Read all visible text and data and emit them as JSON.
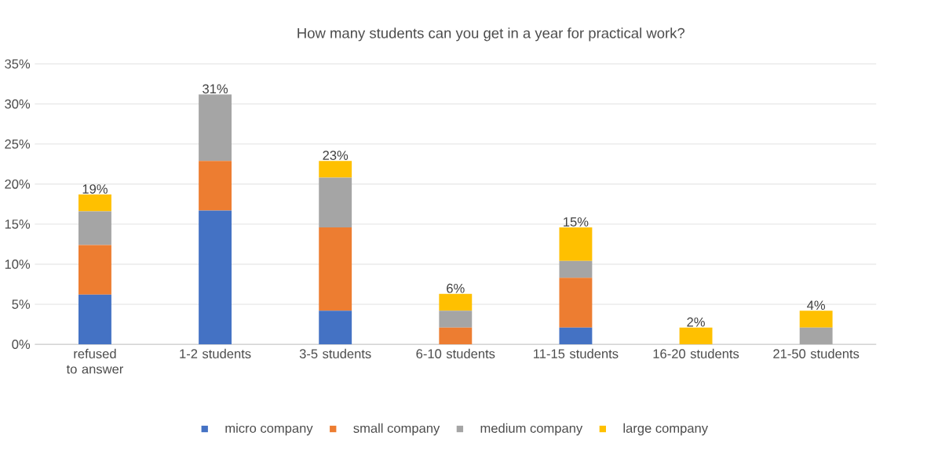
{
  "chart_data": {
    "type": "bar",
    "stacked": true,
    "title": "How many students can you get in a year for practical work?",
    "categories": [
      "refused to answer",
      "1-2 students",
      "3-5 students",
      "6-10 students",
      "11-15 students",
      "16-20 students",
      "21-50 students"
    ],
    "series": [
      {
        "name": "micro company",
        "color": "#4472c4",
        "values": [
          6.2,
          16.7,
          4.2,
          0,
          2.1,
          0,
          0
        ]
      },
      {
        "name": "small company",
        "color": "#ed7d31",
        "values": [
          6.2,
          6.2,
          10.4,
          2.1,
          6.2,
          0,
          0
        ]
      },
      {
        "name": "medium company",
        "color": "#a5a5a5",
        "values": [
          4.2,
          8.3,
          6.2,
          2.1,
          2.1,
          0,
          2.1
        ]
      },
      {
        "name": "large company",
        "color": "#ffc000",
        "values": [
          2.1,
          0,
          2.1,
          2.1,
          4.2,
          2.1,
          2.1
        ]
      }
    ],
    "totals": [
      "19%",
      "31%",
      "23%",
      "6%",
      "15%",
      "2%",
      "4%"
    ],
    "ylim": [
      0,
      35
    ],
    "yticks": [
      {
        "value": 0,
        "label": "0%"
      },
      {
        "value": 5,
        "label": "5%"
      },
      {
        "value": 10,
        "label": "10%"
      },
      {
        "value": 15,
        "label": "15%"
      },
      {
        "value": 20,
        "label": "20%"
      },
      {
        "value": 25,
        "label": "25%"
      },
      {
        "value": 30,
        "label": "30%"
      },
      {
        "value": 35,
        "label": "35%"
      }
    ],
    "grid": "y",
    "legend": "bottom"
  }
}
